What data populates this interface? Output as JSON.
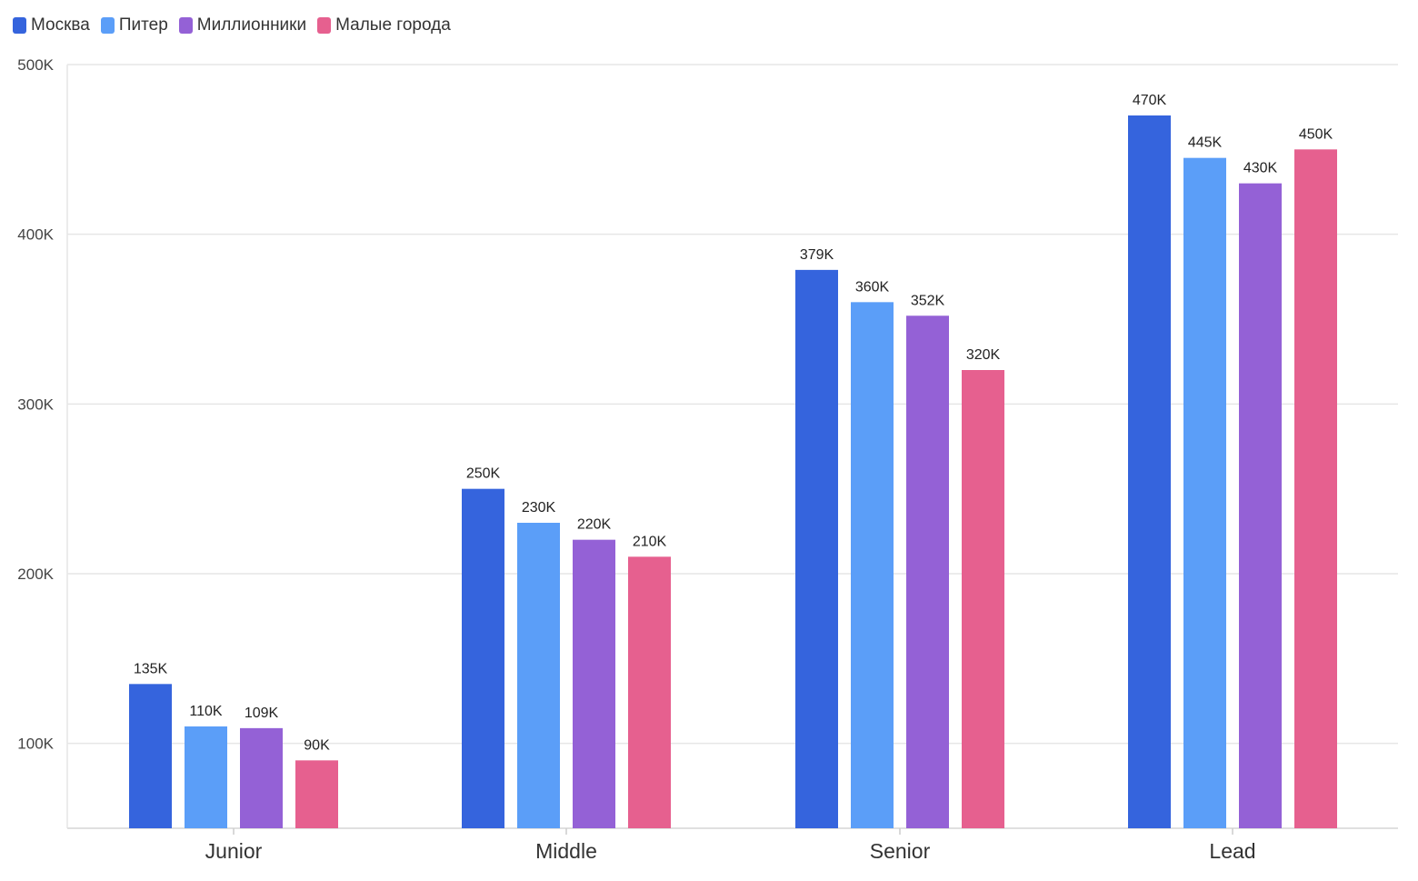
{
  "chart_data": {
    "type": "bar",
    "title": "",
    "xlabel": "",
    "ylabel": "",
    "categories": [
      "Junior",
      "Middle",
      "Senior",
      "Lead"
    ],
    "series": [
      {
        "name": "Москва",
        "color": "#3564DD",
        "values": [
          135,
          250,
          379,
          470
        ],
        "labels": [
          "135K",
          "250K",
          "379K",
          "470K"
        ]
      },
      {
        "name": "Питер",
        "color": "#5B9EF8",
        "values": [
          110,
          230,
          360,
          445
        ],
        "labels": [
          "110K",
          "230K",
          "360K",
          "445K"
        ]
      },
      {
        "name": "Миллионники",
        "color": "#9461D6",
        "values": [
          109,
          220,
          352,
          430
        ],
        "labels": [
          "109K",
          "220K",
          "352K",
          "430K"
        ]
      },
      {
        "name": "Малые города",
        "color": "#E6608F",
        "values": [
          90,
          210,
          320,
          450
        ],
        "labels": [
          "90K",
          "210K",
          "320K",
          "450K"
        ]
      }
    ],
    "ylim": [
      50,
      500
    ],
    "yticks": [
      {
        "value": 100,
        "label": "100K"
      },
      {
        "value": 200,
        "label": "200K"
      },
      {
        "value": 300,
        "label": "300K"
      },
      {
        "value": 400,
        "label": "400K"
      },
      {
        "value": 500,
        "label": "500K"
      }
    ],
    "grid": true,
    "legend_position": "top-left"
  }
}
